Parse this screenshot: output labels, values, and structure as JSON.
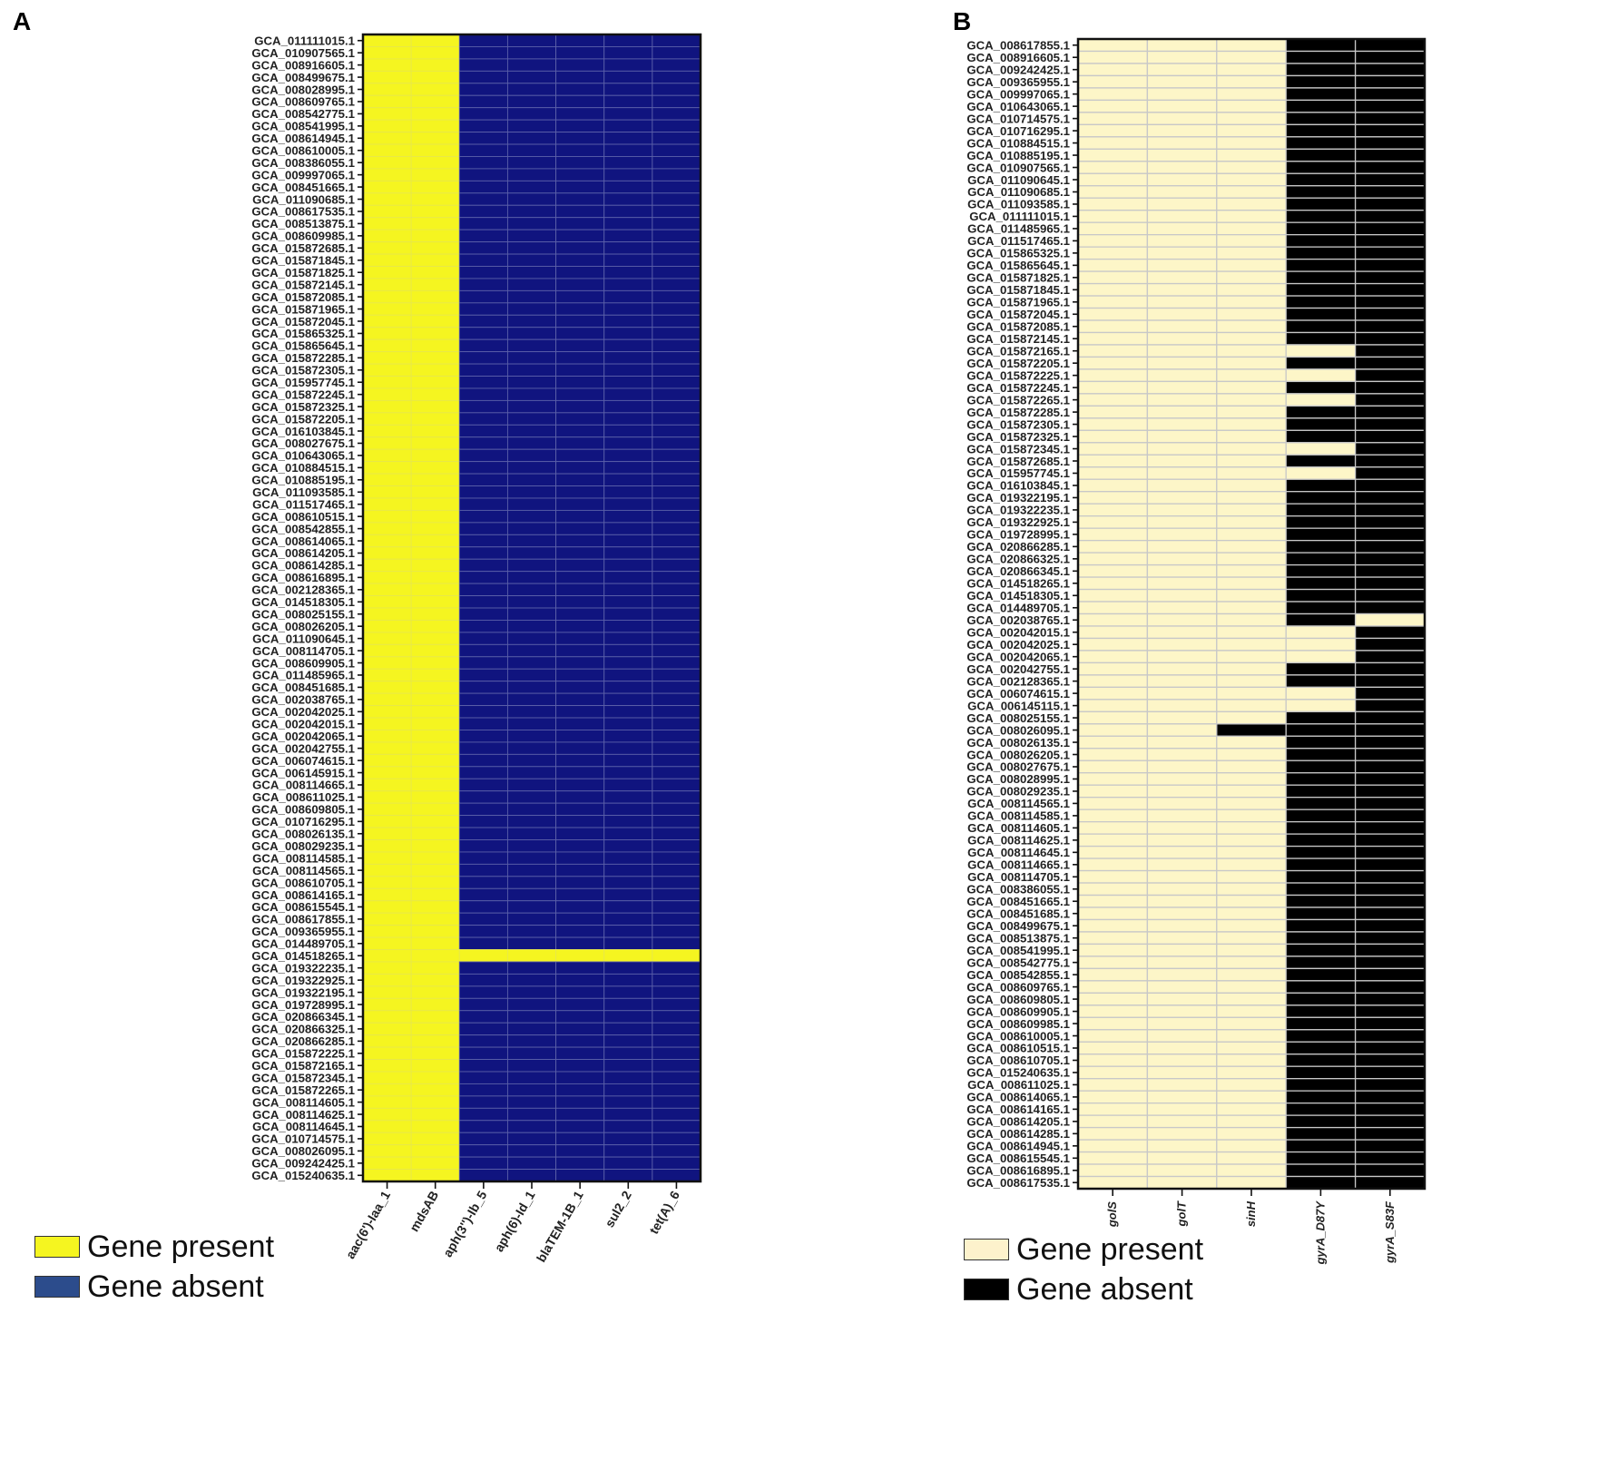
{
  "chart_data": [
    {
      "panel": "A",
      "type": "heatmap",
      "title": "",
      "xlabel": "",
      "ylabel": "",
      "columns": [
        "aac(6')-Iaa_1",
        "mdsAB",
        "aph(3'')-Ib_5",
        "aph(6)-Id_1",
        "blaTEM-1B_1",
        "sul2_2",
        "tet(A)_6"
      ],
      "rows": [
        "GCA_011111015.1",
        "GCA_010907565.1",
        "GCA_008916605.1",
        "GCA_008499675.1",
        "GCA_008028995.1",
        "GCA_008609765.1",
        "GCA_008542775.1",
        "GCA_008541995.1",
        "GCA_008614945.1",
        "GCA_008610005.1",
        "GCA_008386055.1",
        "GCA_009997065.1",
        "GCA_008451665.1",
        "GCA_011090685.1",
        "GCA_008617535.1",
        "GCA_008513875.1",
        "GCA_008609985.1",
        "GCA_015872685.1",
        "GCA_015871845.1",
        "GCA_015871825.1",
        "GCA_015872145.1",
        "GCA_015872085.1",
        "GCA_015871965.1",
        "GCA_015872045.1",
        "GCA_015865325.1",
        "GCA_015865645.1",
        "GCA_015872285.1",
        "GCA_015872305.1",
        "GCA_015957745.1",
        "GCA_015872245.1",
        "GCA_015872325.1",
        "GCA_015872205.1",
        "GCA_016103845.1",
        "GCA_008027675.1",
        "GCA_010643065.1",
        "GCA_010884515.1",
        "GCA_010885195.1",
        "GCA_011093585.1",
        "GCA_011517465.1",
        "GCA_008610515.1",
        "GCA_008542855.1",
        "GCA_008614065.1",
        "GCA_008614205.1",
        "GCA_008614285.1",
        "GCA_008616895.1",
        "GCA_002128365.1",
        "GCA_014518305.1",
        "GCA_008025155.1",
        "GCA_008026205.1",
        "GCA_011090645.1",
        "GCA_008114705.1",
        "GCA_008609905.1",
        "GCA_011485965.1",
        "GCA_008451685.1",
        "GCA_002038765.1",
        "GCA_002042025.1",
        "GCA_002042015.1",
        "GCA_002042065.1",
        "GCA_002042755.1",
        "GCA_006074615.1",
        "GCA_006145915.1",
        "GCA_008114665.1",
        "GCA_008611025.1",
        "GCA_008609805.1",
        "GCA_010716295.1",
        "GCA_008026135.1",
        "GCA_008029235.1",
        "GCA_008114585.1",
        "GCA_008114565.1",
        "GCA_008610705.1",
        "GCA_008614165.1",
        "GCA_008615545.1",
        "GCA_008617855.1",
        "GCA_009365955.1",
        "GCA_014489705.1",
        "GCA_014518265.1",
        "GCA_019322235.1",
        "GCA_019322925.1",
        "GCA_019322195.1",
        "GCA_019728995.1",
        "GCA_020866345.1",
        "GCA_020866325.1",
        "GCA_020866285.1",
        "GCA_015872225.1",
        "GCA_015872165.1",
        "GCA_015872345.1",
        "GCA_015872265.1",
        "GCA_008114605.1",
        "GCA_008114625.1",
        "GCA_008114645.1",
        "GCA_010714575.1",
        "GCA_008026095.1",
        "GCA_009242425.1",
        "GCA_015240635.1"
      ],
      "default_present_columns": [
        0,
        1
      ],
      "rows_all_present": [
        75
      ],
      "legend": [
        "Gene present",
        "Gene absent"
      ],
      "colors": {
        "present": "#f5f520",
        "absent": "#10147f",
        "grid": "#5a5fa8",
        "grid_present": "#e8e84a"
      }
    },
    {
      "panel": "B",
      "type": "heatmap",
      "title": "",
      "xlabel": "",
      "ylabel": "",
      "columns": [
        "golS",
        "golT",
        "sinH",
        "gyrA_D87Y",
        "gyrA_S83F"
      ],
      "rows": [
        "GCA_008617855.1",
        "GCA_008916605.1",
        "GCA_009242425.1",
        "GCA_009365955.1",
        "GCA_009997065.1",
        "GCA_010643065.1",
        "GCA_010714575.1",
        "GCA_010716295.1",
        "GCA_010884515.1",
        "GCA_010885195.1",
        "GCA_010907565.1",
        "GCA_011090645.1",
        "GCA_011090685.1",
        "GCA_011093585.1",
        "GCA_011111015.1",
        "GCA_011485965.1",
        "GCA_011517465.1",
        "GCA_015865325.1",
        "GCA_015865645.1",
        "GCA_015871825.1",
        "GCA_015871845.1",
        "GCA_015871965.1",
        "GCA_015872045.1",
        "GCA_015872085.1",
        "GCA_015872145.1",
        "GCA_015872165.1",
        "GCA_015872205.1",
        "GCA_015872225.1",
        "GCA_015872245.1",
        "GCA_015872265.1",
        "GCA_015872285.1",
        "GCA_015872305.1",
        "GCA_015872325.1",
        "GCA_015872345.1",
        "GCA_015872685.1",
        "GCA_015957745.1",
        "GCA_016103845.1",
        "GCA_019322195.1",
        "GCA_019322235.1",
        "GCA_019322925.1",
        "GCA_019728995.1",
        "GCA_020866285.1",
        "GCA_020866325.1",
        "GCA_020866345.1",
        "GCA_014518265.1",
        "GCA_014518305.1",
        "GCA_014489705.1",
        "GCA_002038765.1",
        "GCA_002042015.1",
        "GCA_002042025.1",
        "GCA_002042065.1",
        "GCA_002042755.1",
        "GCA_002128365.1",
        "GCA_006074615.1",
        "GCA_006145115.1",
        "GCA_008025155.1",
        "GCA_008026095.1",
        "GCA_008026135.1",
        "GCA_008026205.1",
        "GCA_008027675.1",
        "GCA_008028995.1",
        "GCA_008029235.1",
        "GCA_008114565.1",
        "GCA_008114585.1",
        "GCA_008114605.1",
        "GCA_008114625.1",
        "GCA_008114645.1",
        "GCA_008114665.1",
        "GCA_008114705.1",
        "GCA_008386055.1",
        "GCA_008451665.1",
        "GCA_008451685.1",
        "GCA_008499675.1",
        "GCA_008513875.1",
        "GCA_008541995.1",
        "GCA_008542775.1",
        "GCA_008542855.1",
        "GCA_008609765.1",
        "GCA_008609805.1",
        "GCA_008609905.1",
        "GCA_008609985.1",
        "GCA_008610005.1",
        "GCA_008610515.1",
        "GCA_008610705.1",
        "GCA_015240635.1",
        "GCA_008611025.1",
        "GCA_008614065.1",
        "GCA_008614165.1",
        "GCA_008614205.1",
        "GCA_008614285.1",
        "GCA_008614945.1",
        "GCA_008615545.1",
        "GCA_008616895.1",
        "GCA_008617535.1"
      ],
      "default_present_columns": [
        0,
        1,
        2
      ],
      "exceptions": [
        {
          "row": 25,
          "col": 3,
          "present": true
        },
        {
          "row": 27,
          "col": 3,
          "present": true
        },
        {
          "row": 29,
          "col": 3,
          "present": true
        },
        {
          "row": 33,
          "col": 3,
          "present": true
        },
        {
          "row": 35,
          "col": 3,
          "present": true
        },
        {
          "row": 47,
          "col": 4,
          "present": true
        },
        {
          "row": 48,
          "col": 3,
          "present": true
        },
        {
          "row": 49,
          "col": 3,
          "present": true
        },
        {
          "row": 50,
          "col": 3,
          "present": true
        },
        {
          "row": 53,
          "col": 3,
          "present": true
        },
        {
          "row": 54,
          "col": 3,
          "present": true
        },
        {
          "row": 56,
          "col": 2,
          "present": false
        }
      ],
      "legend": [
        "Gene present",
        "Gene absent"
      ],
      "colors": {
        "present": "#fdf6c8",
        "absent": "#000000",
        "grid": "#c8c8c8"
      }
    }
  ],
  "panels": {
    "a": {
      "letter": "A",
      "legend": {
        "present": "Gene present",
        "absent": "Gene absent",
        "present_color": "#f5f520",
        "absent_color": "#2c4c8c"
      }
    },
    "b": {
      "letter": "B",
      "legend": {
        "present": "Gene present",
        "absent": "Gene absent",
        "present_color": "#fdf2cc",
        "absent_color": "#000000"
      }
    }
  }
}
